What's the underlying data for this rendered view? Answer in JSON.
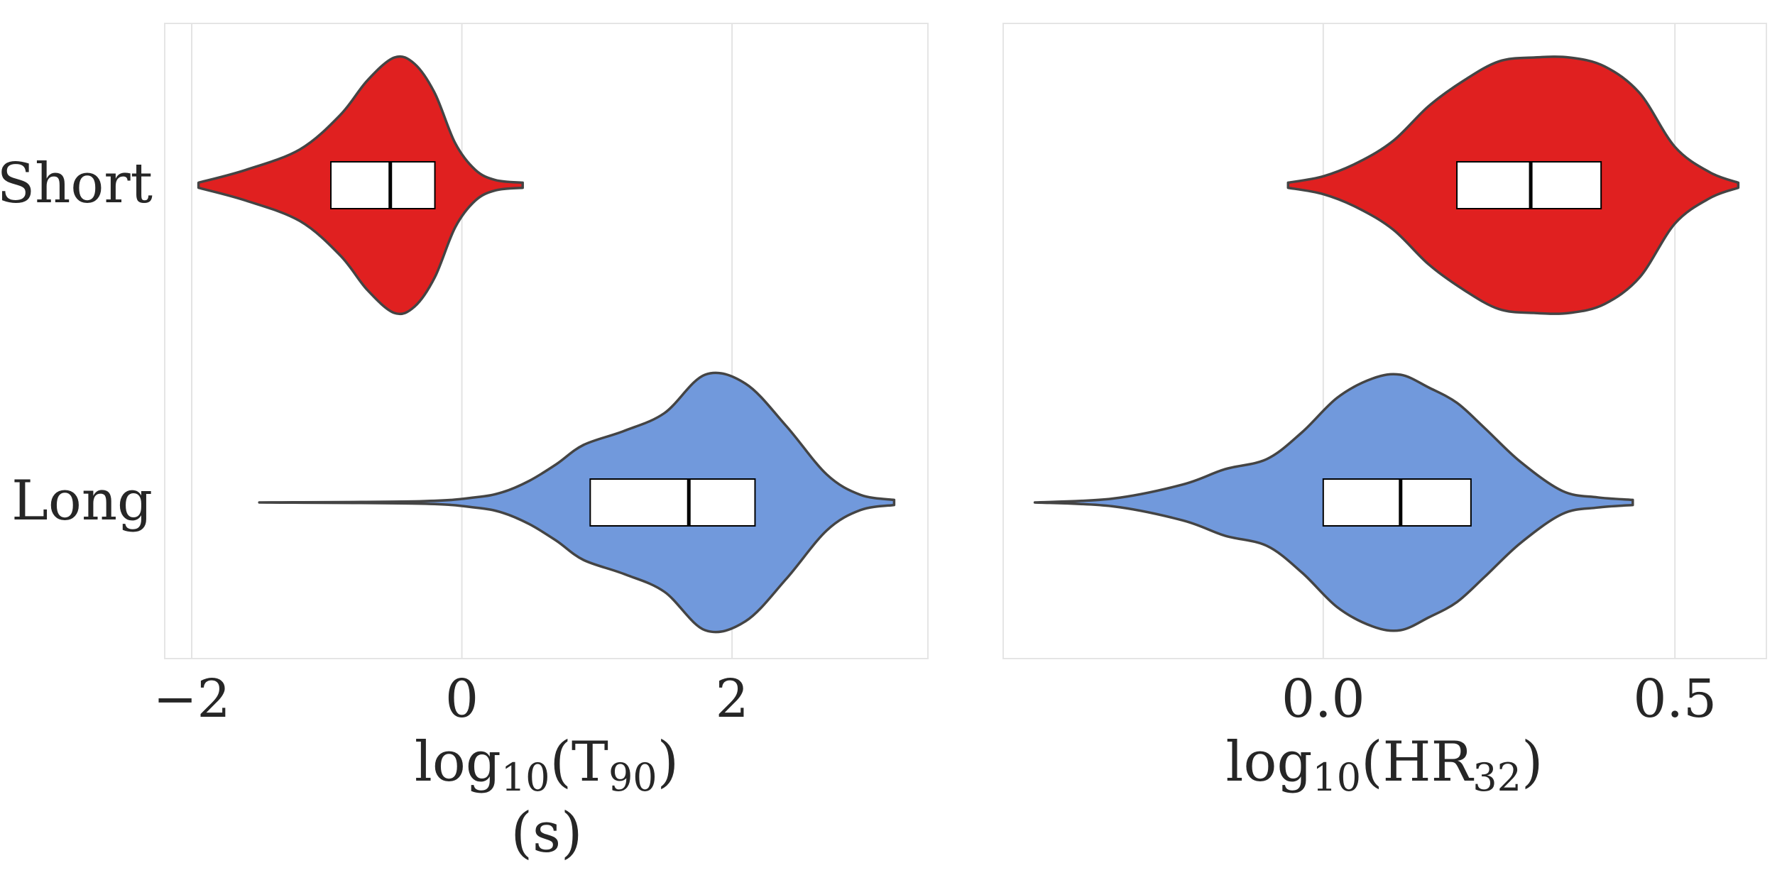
{
  "chart_data": [
    {
      "type": "violin",
      "categories": [
        "Short",
        "Long"
      ],
      "xlabel_main": "log",
      "xlabel_sub": "10",
      "xlabel_var": "T",
      "xlabel_var_sub": "90",
      "xlabel_unit": "(s)",
      "xticks": [
        -2,
        0,
        2
      ],
      "xtick_labels": [
        "−2",
        "0",
        "2"
      ],
      "xlim": [
        -2.2,
        3.45
      ],
      "grid": "vertical",
      "series": [
        {
          "category": "Short",
          "color": "#e02020",
          "box": {
            "q1": -0.97,
            "median": -0.53,
            "q3": -0.2
          },
          "min": -1.95,
          "max": 0.45,
          "density_x": [
            -1.95,
            -1.6,
            -1.2,
            -0.9,
            -0.7,
            -0.5,
            -0.35,
            -0.2,
            -0.05,
            0.1,
            0.25,
            0.45
          ],
          "density_w": [
            0.02,
            0.12,
            0.28,
            0.55,
            0.82,
            1.0,
            0.95,
            0.72,
            0.33,
            0.12,
            0.04,
            0.02
          ]
        },
        {
          "category": "Long",
          "color": "#7199dc",
          "box": {
            "q1": 0.95,
            "median": 1.68,
            "q3": 2.17
          },
          "min": -1.5,
          "max": 3.2,
          "density_x": [
            -1.5,
            -0.3,
            0.1,
            0.3,
            0.5,
            0.7,
            0.9,
            1.2,
            1.5,
            1.8,
            2.1,
            2.4,
            2.7,
            2.95,
            3.2
          ],
          "density_w": [
            0.0,
            0.01,
            0.04,
            0.08,
            0.17,
            0.3,
            0.45,
            0.56,
            0.7,
            1.0,
            0.93,
            0.6,
            0.22,
            0.06,
            0.02
          ]
        }
      ]
    },
    {
      "type": "violin",
      "categories": [
        "Short",
        "Long"
      ],
      "xlabel_main": "log",
      "xlabel_sub": "10",
      "xlabel_var": "HR",
      "xlabel_var_sub": "32",
      "xticks": [
        0.0,
        0.5
      ],
      "xtick_labels": [
        "0.0",
        "0.5"
      ],
      "xlim": [
        -0.455,
        0.63
      ],
      "grid": "vertical",
      "series": [
        {
          "category": "Short",
          "color": "#e02020",
          "box": {
            "q1": 0.19,
            "median": 0.295,
            "q3": 0.395
          },
          "min": -0.05,
          "max": 0.59,
          "density_x": [
            -0.05,
            0.0,
            0.05,
            0.1,
            0.15,
            0.2,
            0.25,
            0.3,
            0.35,
            0.4,
            0.45,
            0.5,
            0.55,
            0.59
          ],
          "density_w": [
            0.02,
            0.07,
            0.18,
            0.35,
            0.62,
            0.82,
            0.97,
            1.0,
            1.0,
            0.93,
            0.72,
            0.3,
            0.1,
            0.02
          ]
        },
        {
          "category": "Long",
          "color": "#7199dc",
          "box": {
            "q1": 0.0,
            "median": 0.11,
            "q3": 0.21
          },
          "min": -0.41,
          "max": 0.44,
          "density_x": [
            -0.41,
            -0.3,
            -0.2,
            -0.14,
            -0.08,
            -0.03,
            0.02,
            0.07,
            0.11,
            0.15,
            0.19,
            0.23,
            0.28,
            0.34,
            0.39,
            0.44
          ],
          "density_w": [
            0.0,
            0.03,
            0.14,
            0.26,
            0.34,
            0.55,
            0.82,
            0.97,
            1.0,
            0.9,
            0.78,
            0.58,
            0.32,
            0.09,
            0.04,
            0.02
          ]
        }
      ]
    }
  ]
}
